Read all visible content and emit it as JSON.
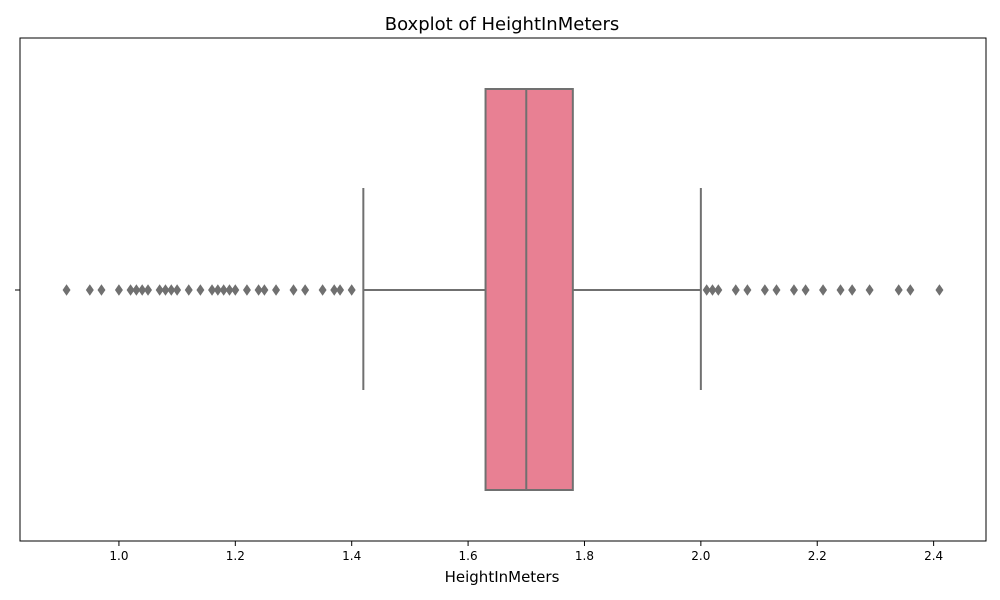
{
  "chart_data": {
    "type": "boxplot",
    "title": "Boxplot of HeightInMeters",
    "xlabel": "HeightInMeters",
    "ylabel": "",
    "xlim": [
      0.83,
      2.49
    ],
    "x_ticks": [
      1.0,
      1.2,
      1.4,
      1.6,
      1.8,
      2.0,
      2.2,
      2.4
    ],
    "x_tick_labels": [
      "1.0",
      "1.2",
      "1.4",
      "1.6",
      "1.8",
      "2.0",
      "2.2",
      "2.4"
    ],
    "grid": false,
    "orientation": "horizontal",
    "box": {
      "q1": 1.63,
      "median": 1.7,
      "q3": 1.78,
      "whisker_low": 1.42,
      "whisker_high": 2.0
    },
    "outliers": [
      0.91,
      0.95,
      0.97,
      1.0,
      1.02,
      1.03,
      1.04,
      1.05,
      1.07,
      1.08,
      1.09,
      1.1,
      1.12,
      1.14,
      1.16,
      1.17,
      1.18,
      1.19,
      1.2,
      1.22,
      1.24,
      1.25,
      1.27,
      1.3,
      1.32,
      1.35,
      1.37,
      1.38,
      1.4,
      2.01,
      2.02,
      2.03,
      2.06,
      2.08,
      2.11,
      2.13,
      2.16,
      2.18,
      2.21,
      2.24,
      2.26,
      2.29,
      2.34,
      2.36,
      2.41
    ],
    "colors": {
      "box_fill": "#e88093",
      "line": "#707070",
      "outlier": "#707070",
      "axes": "#000000"
    }
  }
}
